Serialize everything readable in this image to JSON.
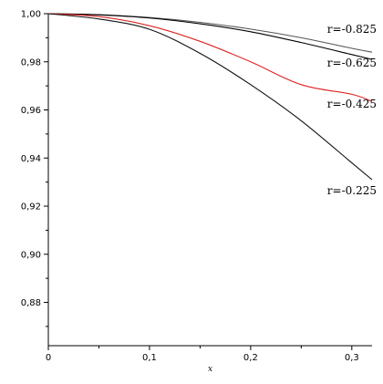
{
  "chart_data": {
    "type": "line",
    "title": "",
    "xlabel": "x",
    "ylabel": "",
    "xlim": [
      0,
      0.32
    ],
    "ylim": [
      0.862,
      1.0
    ],
    "x_ticks": [
      0,
      0.1,
      0.2,
      0.3
    ],
    "x_tick_labels": [
      "0",
      "0,1",
      "0,2",
      "0,3"
    ],
    "y_ticks": [
      1.0,
      0.98,
      0.96,
      0.94,
      0.92,
      0.9,
      0.88
    ],
    "y_tick_labels": [
      "1,00",
      "0,98",
      "0,96",
      "0,94",
      "0,92",
      "0,90",
      "0,88"
    ],
    "grid": false,
    "legend": "inline labels at right end of curves",
    "series": [
      {
        "name": "r=-0.825",
        "color": "#555555",
        "x": [
          0,
          0.05,
          0.1,
          0.15,
          0.2,
          0.25,
          0.3,
          0.32
        ],
        "y": [
          1.0,
          0.9996,
          0.9984,
          0.9964,
          0.9936,
          0.99,
          0.9856,
          0.984
        ]
      },
      {
        "name": "r=-0.625",
        "color": "#000000",
        "x": [
          0,
          0.05,
          0.1,
          0.15,
          0.2,
          0.25,
          0.3,
          0.32
        ],
        "y": [
          1.0,
          0.9995,
          0.9982,
          0.9958,
          0.9925,
          0.988,
          0.983,
          0.981
        ]
      },
      {
        "name": "r=-0.425",
        "color": "#dd2222",
        "x": [
          0,
          0.05,
          0.1,
          0.15,
          0.2,
          0.25,
          0.3,
          0.32
        ],
        "y": [
          1.0,
          0.9988,
          0.995,
          0.9885,
          0.98,
          0.9705,
          0.9665,
          0.9635
        ]
      },
      {
        "name": "r=-0.225",
        "color": "#111111",
        "x": [
          0,
          0.05,
          0.1,
          0.15,
          0.2,
          0.25,
          0.3,
          0.32
        ],
        "y": [
          1.0,
          0.9978,
          0.9935,
          0.9835,
          0.9705,
          0.9555,
          0.938,
          0.931
        ]
      }
    ],
    "series_label_anchor_y": [
      0.9935,
      0.9795,
      0.9625,
      0.9265
    ]
  }
}
